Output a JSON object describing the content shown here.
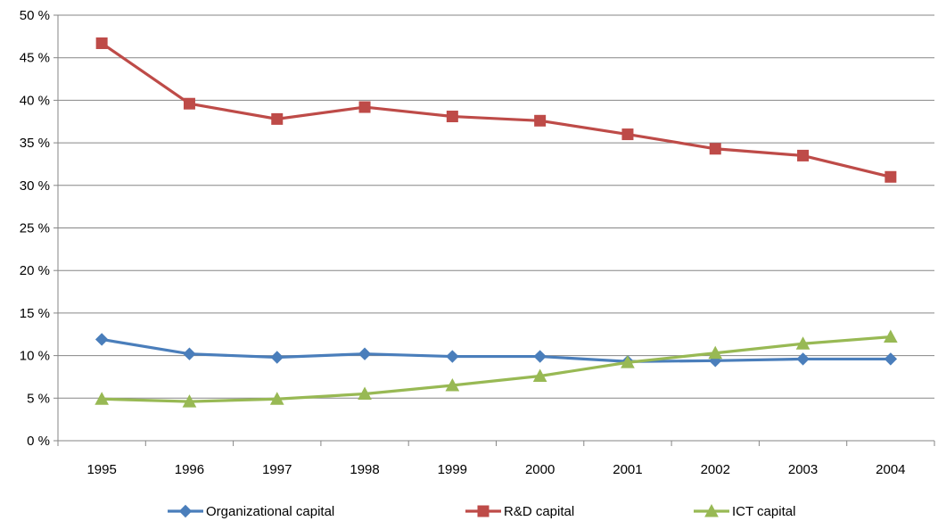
{
  "chart_data": {
    "type": "line",
    "title": "",
    "xlabel": "",
    "ylabel": "",
    "categories": [
      "1995",
      "1996",
      "1997",
      "1998",
      "1999",
      "2000",
      "2001",
      "2002",
      "2003",
      "2004"
    ],
    "ylim": [
      0,
      50
    ],
    "yticks": [
      0,
      5,
      10,
      15,
      20,
      25,
      30,
      35,
      40,
      45,
      50
    ],
    "ytick_labels": [
      "0 %",
      "5 %",
      "10 %",
      "15 %",
      "20 %",
      "25 %",
      "30 %",
      "35 %",
      "40 %",
      "45 %",
      "50 %"
    ],
    "grid": "horizontal",
    "legend_position": "bottom",
    "series": [
      {
        "name": "Organizational capital",
        "color": "#4a7ebb",
        "marker": "diamond",
        "values": [
          11.9,
          10.2,
          9.8,
          10.2,
          9.9,
          9.9,
          9.3,
          9.4,
          9.6,
          9.6
        ]
      },
      {
        "name": "R&D capital",
        "color": "#be4b48",
        "marker": "square",
        "values": [
          46.7,
          39.6,
          37.8,
          39.2,
          38.1,
          37.6,
          36.0,
          34.3,
          33.5,
          31.0
        ]
      },
      {
        "name": "ICT capital",
        "color": "#98b954",
        "marker": "triangle",
        "values": [
          4.9,
          4.6,
          4.9,
          5.5,
          6.5,
          7.6,
          9.2,
          10.3,
          11.4,
          12.2
        ]
      }
    ]
  }
}
